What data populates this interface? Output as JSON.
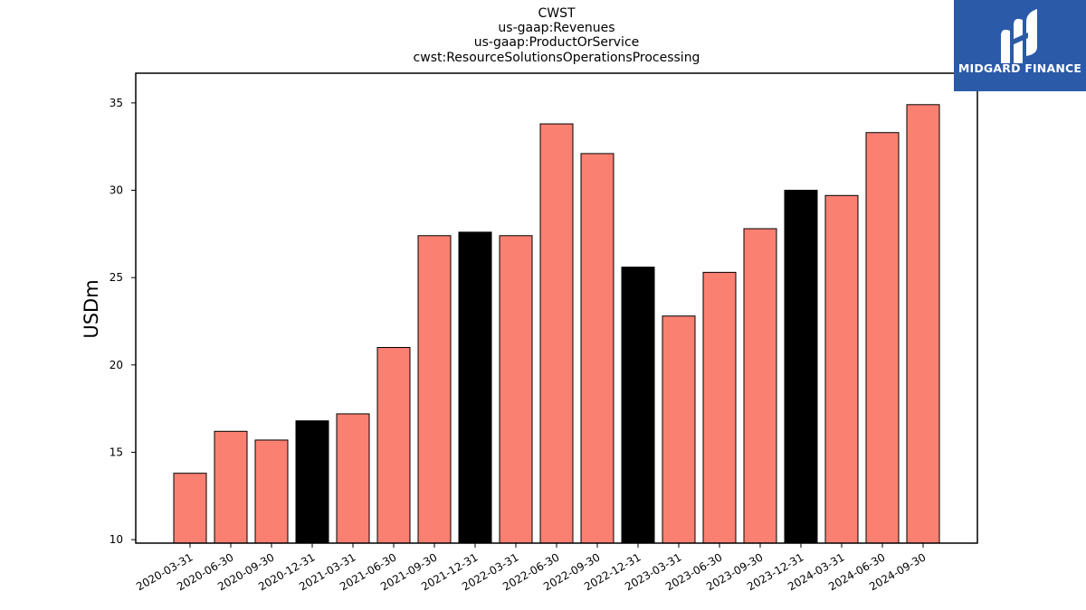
{
  "logo": {
    "text": "MIDGARD FINANCE",
    "icon": "midgard-m-logo-icon",
    "background_color": "#2b5aa8"
  },
  "chart_data": {
    "type": "bar",
    "title_lines": [
      "CWST",
      "us-gaap:Revenues",
      "us-gaap:ProductOrService",
      "cwst:ResourceSolutionsOperationsProcessing"
    ],
    "xlabel": "",
    "ylabel": "USDm",
    "ylim": [
      9.8,
      36.7
    ],
    "yticks": [
      10,
      15,
      20,
      25,
      30,
      35
    ],
    "grid": false,
    "categories": [
      "2020-03-31",
      "2020-06-30",
      "2020-09-30",
      "2020-12-31",
      "2021-03-31",
      "2021-06-30",
      "2021-09-30",
      "2021-12-31",
      "2022-03-31",
      "2022-06-30",
      "2022-09-30",
      "2022-12-31",
      "2023-03-31",
      "2023-06-30",
      "2023-09-30",
      "2023-12-31",
      "2024-03-31",
      "2024-06-30",
      "2024-09-30"
    ],
    "values": [
      13.8,
      16.2,
      15.7,
      16.8,
      17.2,
      21.0,
      27.4,
      27.6,
      27.4,
      33.8,
      32.1,
      25.6,
      22.8,
      25.3,
      27.8,
      30.0,
      29.7,
      33.3,
      34.9
    ],
    "bar_colors": [
      "#fa8072",
      "#fa8072",
      "#fa8072",
      "#000000",
      "#fa8072",
      "#fa8072",
      "#fa8072",
      "#000000",
      "#fa8072",
      "#fa8072",
      "#fa8072",
      "#000000",
      "#fa8072",
      "#fa8072",
      "#fa8072",
      "#000000",
      "#fa8072",
      "#fa8072",
      "#fa8072"
    ]
  }
}
